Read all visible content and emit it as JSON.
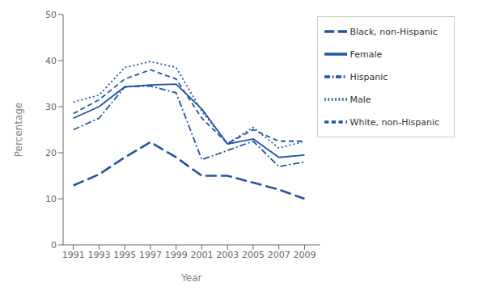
{
  "chart_data": {
    "type": "line",
    "xlabel": "Year",
    "ylabel": "Percentage",
    "x": [
      1991,
      1993,
      1995,
      1997,
      1999,
      2001,
      2003,
      2005,
      2007,
      2009
    ],
    "xlim": [
      1990.2,
      2010.2
    ],
    "xticks": [
      1991,
      1993,
      1995,
      1997,
      1999,
      2001,
      2003,
      2005,
      2007,
      2009
    ],
    "ylim": [
      0,
      50
    ],
    "yticks": [
      0,
      10,
      20,
      30,
      40,
      50
    ],
    "legend": "upper right",
    "series": [
      {
        "name": "Female",
        "color": "#2255a4",
        "line_style": "solid",
        "values": [
          27.5,
          30.0,
          34.3,
          34.7,
          34.9,
          29.5,
          21.9,
          23.0,
          19.0,
          19.5
        ]
      },
      {
        "name": "Male",
        "color": "#2255a4",
        "line_style": "dotted",
        "values": [
          31.0,
          32.5,
          38.5,
          39.8,
          38.5,
          29.0,
          22.0,
          25.5,
          21.0,
          22.5
        ]
      },
      {
        "name": "White, non-Hispanic",
        "color": "#2255a4",
        "line_style": "dashed",
        "values": [
          28.5,
          31.5,
          36.0,
          38.0,
          36.0,
          27.5,
          22.0,
          25.0,
          22.5,
          22.5
        ]
      },
      {
        "name": "Black, non-Hispanic",
        "color": "#2255a4",
        "line_style": "longdash",
        "values": [
          12.9,
          15.3,
          19.0,
          22.3,
          19.0,
          15.0,
          15.0,
          13.5,
          12.0,
          10.0
        ]
      },
      {
        "name": "Hispanic",
        "color": "#2255a4",
        "line_style": "dashdot",
        "values": [
          25.0,
          27.5,
          34.3,
          34.5,
          33.0,
          18.5,
          20.5,
          22.5,
          17.0,
          18.0
        ]
      }
    ]
  }
}
